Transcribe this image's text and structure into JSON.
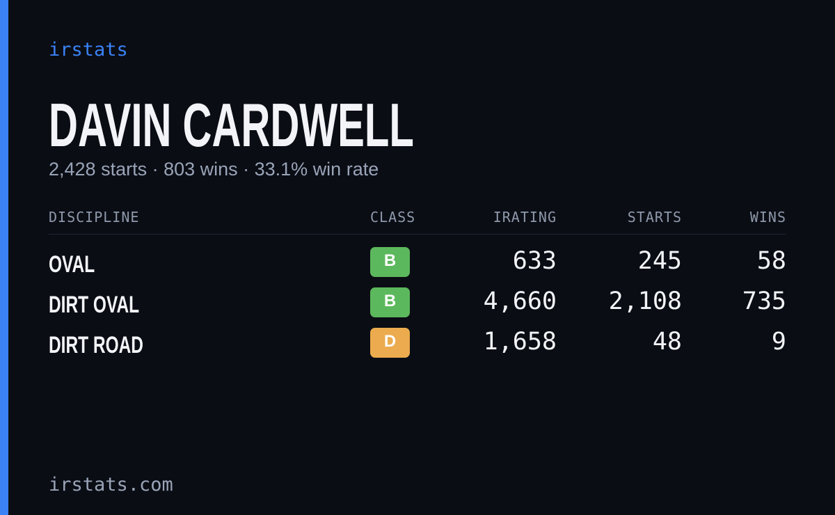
{
  "brand": "irstats",
  "player": {
    "name": "DAVIN CARDWELL",
    "summary": "2,428 starts · 803 wins · 33.1% win rate"
  },
  "table": {
    "columns": [
      "DISCIPLINE",
      "CLASS",
      "IRATING",
      "STARTS",
      "WINS"
    ],
    "rows": [
      {
        "discipline": "OVAL",
        "class": "B",
        "class_color": "#5cb85c",
        "irating": "633",
        "starts": "245",
        "wins": "58"
      },
      {
        "discipline": "DIRT OVAL",
        "class": "B",
        "class_color": "#5cb85c",
        "irating": "4,660",
        "starts": "2,108",
        "wins": "735"
      },
      {
        "discipline": "DIRT ROAD",
        "class": "D",
        "class_color": "#ebab4e",
        "irating": "1,658",
        "starts": "48",
        "wins": "9"
      }
    ]
  },
  "footer": "irstats.com"
}
